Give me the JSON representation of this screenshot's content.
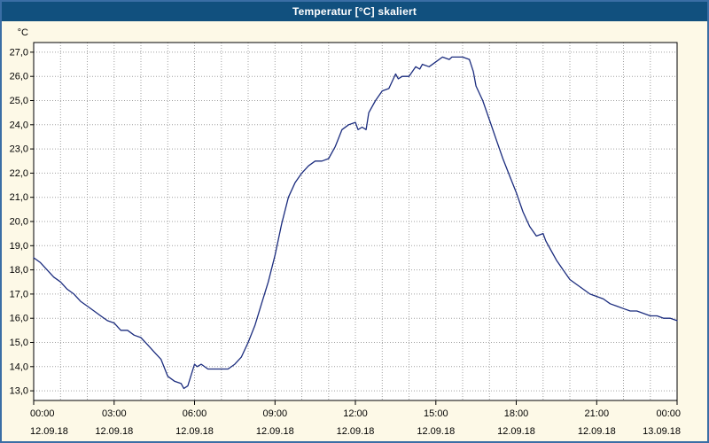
{
  "window": {
    "title": "Temperatur [°C] skaliert"
  },
  "colors": {
    "titlebar_bg": "#11507e",
    "titlebar_text": "#ffffff",
    "window_bg": "#fdf9e7",
    "plot_bg": "#ffffff",
    "grid": "#a0a0a0",
    "axis": "#000000",
    "line": "#1b2c7e",
    "window_border": "#3a6ea5"
  },
  "chart_data": {
    "type": "line",
    "title": "Temperatur [°C] skaliert",
    "ylabel": "°C",
    "xlabel": "",
    "grid": "dotted, hourly vertical lines and 1.0 °C horizontal lines",
    "legend_position": "none",
    "xlim": [
      0,
      24
    ],
    "ylim": [
      13.0,
      27.0
    ],
    "ylim_draw": [
      12.6,
      27.4
    ],
    "line_color": "#1b2c7e",
    "y_ticks": [
      {
        "value": 13,
        "label": "13,0"
      },
      {
        "value": 14,
        "label": "14,0"
      },
      {
        "value": 15,
        "label": "15,0"
      },
      {
        "value": 16,
        "label": "16,0"
      },
      {
        "value": 17,
        "label": "17,0"
      },
      {
        "value": 18,
        "label": "18,0"
      },
      {
        "value": 19,
        "label": "19,0"
      },
      {
        "value": 20,
        "label": "20,0"
      },
      {
        "value": 21,
        "label": "21,0"
      },
      {
        "value": 22,
        "label": "22,0"
      },
      {
        "value": 23,
        "label": "23,0"
      },
      {
        "value": 24,
        "label": "24,0"
      },
      {
        "value": 25,
        "label": "25,0"
      },
      {
        "value": 26,
        "label": "26,0"
      },
      {
        "value": 27,
        "label": "27,0"
      }
    ],
    "x_ticks": [
      {
        "hour": 0,
        "time": "00:00",
        "date": "12.09.18"
      },
      {
        "hour": 3,
        "time": "03:00",
        "date": "12.09.18"
      },
      {
        "hour": 6,
        "time": "06:00",
        "date": "12.09.18"
      },
      {
        "hour": 9,
        "time": "09:00",
        "date": "12.09.18"
      },
      {
        "hour": 12,
        "time": "12:00",
        "date": "12.09.18"
      },
      {
        "hour": 15,
        "time": "15:00",
        "date": "12.09.18"
      },
      {
        "hour": 18,
        "time": "18:00",
        "date": "12.09.18"
      },
      {
        "hour": 21,
        "time": "21:00",
        "date": "12.09.18"
      },
      {
        "hour": 24,
        "time": "00:00",
        "date": "13.09.18"
      }
    ],
    "series_name": "Temperatur [°C]",
    "points": [
      [
        0.0,
        18.5
      ],
      [
        0.25,
        18.3
      ],
      [
        0.5,
        18.0
      ],
      [
        0.75,
        17.7
      ],
      [
        1.0,
        17.5
      ],
      [
        1.25,
        17.2
      ],
      [
        1.5,
        17.0
      ],
      [
        1.75,
        16.7
      ],
      [
        2.0,
        16.5
      ],
      [
        2.25,
        16.3
      ],
      [
        2.5,
        16.1
      ],
      [
        2.75,
        15.9
      ],
      [
        3.0,
        15.8
      ],
      [
        3.25,
        15.5
      ],
      [
        3.5,
        15.5
      ],
      [
        3.75,
        15.3
      ],
      [
        4.0,
        15.2
      ],
      [
        4.25,
        14.9
      ],
      [
        4.5,
        14.6
      ],
      [
        4.75,
        14.3
      ],
      [
        5.0,
        13.6
      ],
      [
        5.25,
        13.4
      ],
      [
        5.5,
        13.3
      ],
      [
        5.6,
        13.1
      ],
      [
        5.75,
        13.2
      ],
      [
        6.0,
        14.1
      ],
      [
        6.1,
        14.0
      ],
      [
        6.25,
        14.1
      ],
      [
        6.5,
        13.9
      ],
      [
        6.75,
        13.9
      ],
      [
        7.0,
        13.9
      ],
      [
        7.25,
        13.9
      ],
      [
        7.5,
        14.1
      ],
      [
        7.75,
        14.4
      ],
      [
        8.0,
        15.0
      ],
      [
        8.25,
        15.7
      ],
      [
        8.5,
        16.6
      ],
      [
        8.75,
        17.5
      ],
      [
        9.0,
        18.6
      ],
      [
        9.25,
        19.9
      ],
      [
        9.5,
        21.0
      ],
      [
        9.75,
        21.6
      ],
      [
        10.0,
        22.0
      ],
      [
        10.25,
        22.3
      ],
      [
        10.5,
        22.5
      ],
      [
        10.75,
        22.5
      ],
      [
        11.0,
        22.6
      ],
      [
        11.25,
        23.1
      ],
      [
        11.5,
        23.8
      ],
      [
        11.75,
        24.0
      ],
      [
        12.0,
        24.1
      ],
      [
        12.1,
        23.8
      ],
      [
        12.25,
        23.9
      ],
      [
        12.4,
        23.8
      ],
      [
        12.5,
        24.5
      ],
      [
        12.75,
        25.0
      ],
      [
        13.0,
        25.4
      ],
      [
        13.25,
        25.5
      ],
      [
        13.5,
        26.1
      ],
      [
        13.6,
        25.9
      ],
      [
        13.75,
        26.0
      ],
      [
        14.0,
        26.0
      ],
      [
        14.25,
        26.4
      ],
      [
        14.4,
        26.3
      ],
      [
        14.5,
        26.5
      ],
      [
        14.75,
        26.4
      ],
      [
        15.0,
        26.6
      ],
      [
        15.25,
        26.8
      ],
      [
        15.5,
        26.7
      ],
      [
        15.6,
        26.8
      ],
      [
        15.75,
        26.8
      ],
      [
        16.0,
        26.8
      ],
      [
        16.25,
        26.7
      ],
      [
        16.4,
        26.2
      ],
      [
        16.5,
        25.6
      ],
      [
        16.75,
        25.0
      ],
      [
        17.0,
        24.2
      ],
      [
        17.25,
        23.4
      ],
      [
        17.5,
        22.6
      ],
      [
        17.75,
        21.9
      ],
      [
        18.0,
        21.2
      ],
      [
        18.25,
        20.4
      ],
      [
        18.5,
        19.8
      ],
      [
        18.75,
        19.4
      ],
      [
        19.0,
        19.5
      ],
      [
        19.1,
        19.2
      ],
      [
        19.25,
        18.9
      ],
      [
        19.5,
        18.4
      ],
      [
        19.75,
        18.0
      ],
      [
        20.0,
        17.6
      ],
      [
        20.25,
        17.4
      ],
      [
        20.5,
        17.2
      ],
      [
        20.75,
        17.0
      ],
      [
        21.0,
        16.9
      ],
      [
        21.25,
        16.8
      ],
      [
        21.5,
        16.6
      ],
      [
        21.75,
        16.5
      ],
      [
        22.0,
        16.4
      ],
      [
        22.25,
        16.3
      ],
      [
        22.5,
        16.3
      ],
      [
        22.75,
        16.2
      ],
      [
        23.0,
        16.1
      ],
      [
        23.25,
        16.1
      ],
      [
        23.5,
        16.0
      ],
      [
        23.75,
        16.0
      ],
      [
        24.0,
        15.9
      ]
    ]
  }
}
